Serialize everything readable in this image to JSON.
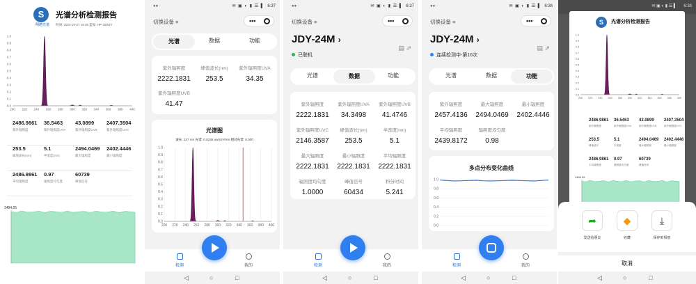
{
  "report": {
    "title": "光谱分析检测报告",
    "logo_text": "明皓光谱",
    "subtitle": "时间: 2022-04-27 18:38   型号: HP-250UV",
    "yticks": [
      "1.0",
      "0.9",
      "0.8",
      "0.7",
      "0.6",
      "0.5",
      "0.4",
      "0.3",
      "0.2",
      "0.1",
      "0.0"
    ],
    "xticks": [
      "200",
      "220",
      "240",
      "260",
      "280",
      "300",
      "320",
      "340",
      "360",
      "380",
      "400"
    ],
    "stats": [
      {
        "v": "2486.9861",
        "l": "紫外辐照度"
      },
      {
        "v": "36.5463",
        "l": "紫外辐照度UVA"
      },
      {
        "v": "43.0899",
        "l": "紫外辐照度UVB"
      },
      {
        "v": "2407.3504",
        "l": "紫外辐照度UVC"
      },
      {
        "v": "253.5",
        "l": "峰值波长(nm)"
      },
      {
        "v": "5.1",
        "l": "半宽度(nm)"
      },
      {
        "v": "2494.0469",
        "l": "最大辐照度"
      },
      {
        "v": "2402.4446",
        "l": "最小辐照度"
      },
      {
        "v": "2486.9861",
        "l": "平均辐照度"
      },
      {
        "v": "0.97",
        "l": "辐照度均匀度"
      },
      {
        "v": "60739",
        "l": "峰值信号"
      }
    ],
    "area_label": "2494.05"
  },
  "phone1": {
    "time": "6:37",
    "status_dots": "●● ·",
    "status_icons": "✉ ▣ ◐ ▮ ☰ ▌",
    "header_title": "切换设备 ≡",
    "capsule_more": "•••",
    "tabs": [
      "光谱",
      "数据",
      "功能"
    ],
    "active_tab": "光谱",
    "cells": [
      {
        "l": "紫外辐照度",
        "v": "2222.1831"
      },
      {
        "l": "峰值波长(nm)",
        "v": "253.5"
      },
      {
        "l": "紫外辐照度UVA",
        "v": "34.35"
      },
      {
        "l": "紫外辐照度UVB",
        "v": "41.47"
      }
    ],
    "chart_title": "光谱图",
    "chart_sub": "波长: 247 nm  光谱: 0.0236 uw/cm²/nm  相对光谱: 0.000",
    "yticks": [
      "1.0",
      "0.9",
      "0.8",
      "0.7",
      "0.6",
      "0.5",
      "0.4",
      "0.3",
      "0.2",
      "0.1",
      "0.0"
    ],
    "xticks": [
      "200",
      "220",
      "240",
      "260",
      "280",
      "300",
      "320",
      "340",
      "360",
      "380",
      "400"
    ],
    "nav": [
      "检测",
      "我的"
    ]
  },
  "phone2": {
    "time": "6:37",
    "status_dots": "●● ·",
    "status_icons": "✉ ▣ ◐ ▮ ☰ ▌",
    "header_title": "切换设备 ≡",
    "capsule_more": "•••",
    "device": "JDY-24M",
    "status": "已联机",
    "status_color": "#2bb24c",
    "tabs": [
      "光谱",
      "数据",
      "功能"
    ],
    "active_tab": "数据",
    "cells": [
      {
        "l": "紫外辐照度",
        "v": "2222.1831"
      },
      {
        "l": "紫外辐照度UVA",
        "v": "34.3498"
      },
      {
        "l": "紫外辐照度UVB",
        "v": "41.4746"
      },
      {
        "l": "紫外辐照度UVC",
        "v": "2146.3587"
      },
      {
        "l": "峰值波长(nm)",
        "v": "253.5"
      },
      {
        "l": "半宽度(nm)",
        "v": "5.1"
      },
      {
        "l": "最大辐照度",
        "v": "2222.1831"
      },
      {
        "l": "最小辐照度",
        "v": "2222.1831"
      },
      {
        "l": "平均辐照度",
        "v": "2222.1831"
      },
      {
        "l": "辐照度均匀度",
        "v": "1.0000"
      },
      {
        "l": "峰值信号",
        "v": "60434"
      },
      {
        "l": "积分时间",
        "v": "5.241"
      }
    ],
    "nav": [
      "检测",
      "我的"
    ]
  },
  "phone3": {
    "time": "6:38",
    "status_dots": "●● ·",
    "status_icons": "✉ ▣ ◐ ▮ ☰ ▌",
    "header_title": "切换设备 ≡",
    "capsule_more": "•••",
    "device": "JDY-24M",
    "status": "连续检测中-第16次",
    "status_color": "#2f7ff0",
    "tabs": [
      "光谱",
      "数据",
      "功能"
    ],
    "active_tab": "功能",
    "cells": [
      {
        "l": "紫外辐照度",
        "v": "2457.4136"
      },
      {
        "l": "最大辐照度",
        "v": "2494.0469"
      },
      {
        "l": "最小辐照度",
        "v": "2402.4446"
      },
      {
        "l": "平均辐照度",
        "v": "2439.8172"
      },
      {
        "l": "辐照度均匀度",
        "v": "0.98"
      }
    ],
    "chart_title": "多点分布变化曲线",
    "yticks": [
      "1.0",
      "0.8",
      "0.6",
      "0.4",
      "0.2",
      "0.0"
    ],
    "nav": [
      "检测",
      "我的"
    ]
  },
  "phone4": {
    "time": "6:38",
    "status_icons": "✉ ▣ ◐ ▮ ☰ ▌",
    "report_title": "光谱分析检测报告",
    "stats": [
      {
        "v": "2486.9861",
        "l": "紫外辐照度"
      },
      {
        "v": "36.5463",
        "l": "紫外辐照度UVA"
      },
      {
        "v": "43.0899",
        "l": "紫外辐照度UVB"
      },
      {
        "v": "2407.3504",
        "l": "紫外辐照度UVC"
      },
      {
        "v": "253.5",
        "l": "峰值波长"
      },
      {
        "v": "5.1",
        "l": "半宽度"
      },
      {
        "v": "2494.0469",
        "l": "最大辐照度"
      },
      {
        "v": "2402.4446",
        "l": "最小辐照度"
      },
      {
        "v": "2486.9861",
        "l": "平均辐照度"
      },
      {
        "v": "0.97",
        "l": "辐照度均匀度"
      },
      {
        "v": "60739",
        "l": "峰值信号"
      }
    ],
    "area_label": "2494.05",
    "share": [
      {
        "label": "发送给朋友",
        "icon": "share-arrow-icon",
        "glyph": "➦",
        "color": "#1aad19"
      },
      {
        "label": "收藏",
        "icon": "favorite-cube-icon",
        "glyph": "◆",
        "color": "#f39c12"
      },
      {
        "label": "保存到相册",
        "icon": "save-download-icon",
        "glyph": "⤓",
        "color": "#333"
      }
    ],
    "cancel": "取消"
  }
}
